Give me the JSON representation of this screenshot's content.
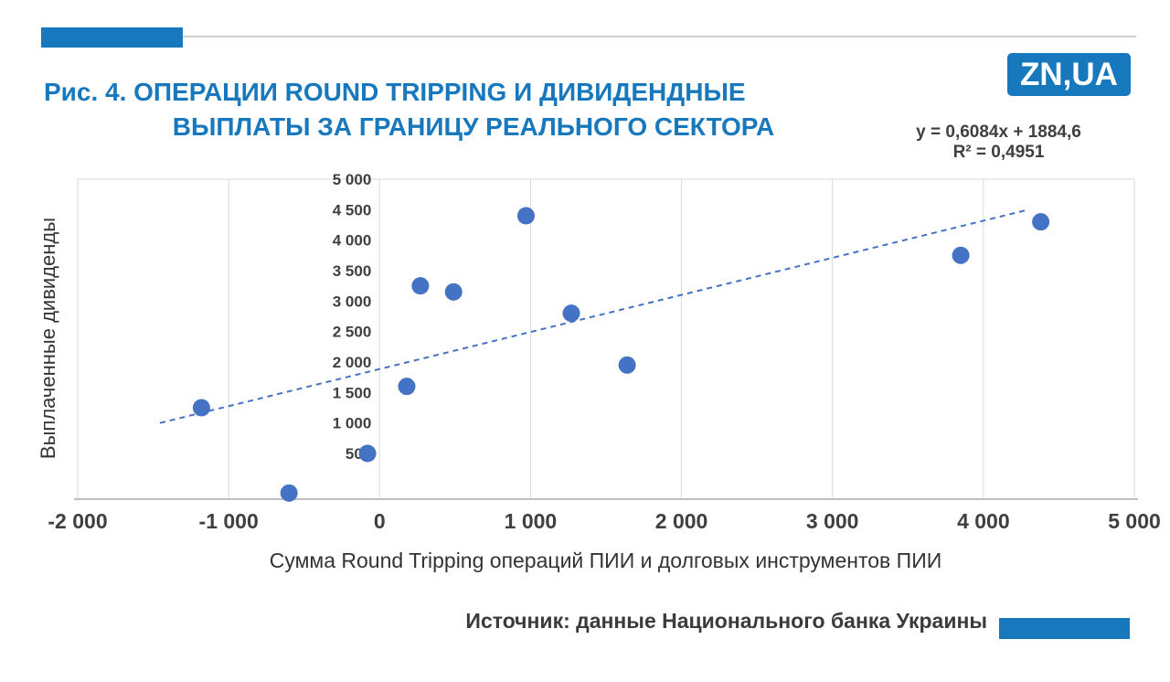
{
  "logo": {
    "text": "ZN,UA",
    "bg_color": "#1878bd"
  },
  "title": {
    "line1": "Рис. 4. ОПЕРАЦИИ ROUND TRIPPING И ДИВИДЕНДНЫЕ",
    "line2": "ВЫПЛАТЫ ЗА ГРАНИЦУ РЕАЛЬНОГО СЕКТОРА"
  },
  "equation": {
    "line1": "y = 0,6084x + 1884,6",
    "line2": "R² = 0,4951"
  },
  "source": "Источник: данные Национального банка Украины",
  "colors": {
    "accent_blue": "#1878bd",
    "point_blue": "#4472c4",
    "grid_gray": "#d9d9d9",
    "axis_gray": "#bfbfbf",
    "text_dark": "#3f3f3f"
  },
  "chart_data": {
    "type": "scatter",
    "xlabel": "Сумма Round Tripping операций ПИИ и долговых инструментов ПИИ",
    "ylabel": "Выплаченные дивиденды",
    "xlim": [
      -2000,
      5000
    ],
    "ylim": [
      -250,
      5000
    ],
    "x_ticks": [
      -2000,
      -1000,
      0,
      1000,
      2000,
      3000,
      4000,
      5000
    ],
    "y_ticks": [
      500,
      1000,
      1500,
      2000,
      2500,
      3000,
      3500,
      4000,
      4500,
      5000
    ],
    "grid": "vertical-only",
    "legend": "none",
    "points": [
      [
        -1180,
        1250
      ],
      [
        -600,
        -150
      ],
      [
        -80,
        500
      ],
      [
        180,
        1600
      ],
      [
        270,
        3250
      ],
      [
        490,
        3150
      ],
      [
        970,
        4400
      ],
      [
        1270,
        2800
      ],
      [
        1640,
        1950
      ],
      [
        3850,
        3750
      ],
      [
        4380,
        4300
      ]
    ],
    "trendline": {
      "slope": 0.6084,
      "intercept": 1884.6,
      "x_start": -1455,
      "x_end": 4280,
      "style": "dashed",
      "r_squared": 0.4951
    }
  }
}
